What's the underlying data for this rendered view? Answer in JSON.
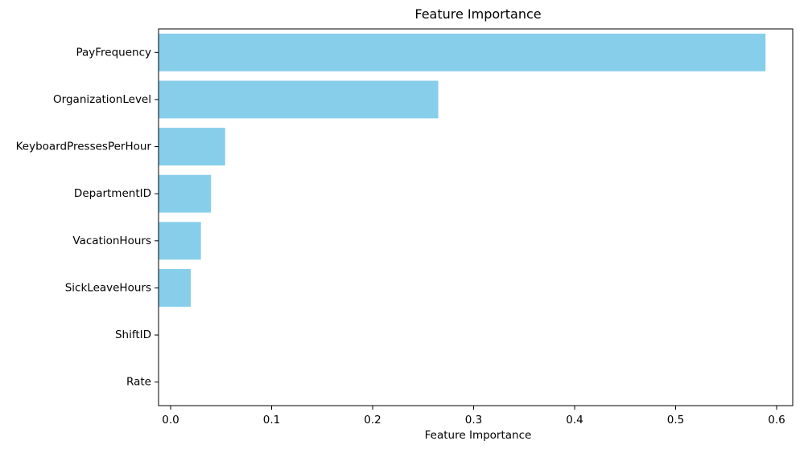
{
  "chart_data": {
    "type": "bar",
    "orientation": "horizontal",
    "title": "Feature Importance",
    "xlabel": "Feature Importance",
    "ylabel": "",
    "xlim": [
      0,
      0.6
    ],
    "xticks": [
      "0.0",
      "0.1",
      "0.2",
      "0.3",
      "0.4",
      "0.5",
      "0.6"
    ],
    "categories": [
      "PayFrequency",
      "OrganizationLevel",
      "KeyboardPressesPerHour",
      "DepartmentID",
      "VacationHours",
      "SickLeaveHours",
      "ShiftID",
      "Rate"
    ],
    "values": [
      0.589,
      0.265,
      0.054,
      0.04,
      0.03,
      0.02,
      0.0,
      0.0
    ],
    "bar_color": "#87CEEB",
    "grid": false,
    "legend": "none"
  }
}
